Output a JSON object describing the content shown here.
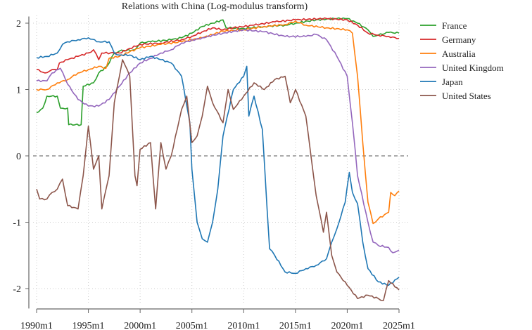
{
  "chart_data": {
    "type": "line",
    "title": "Relations with China (Log-modulus transform)",
    "xlabel": "",
    "ylabel": "",
    "xlim": [
      1990,
      2025
    ],
    "ylim": [
      -2.3,
      2.1
    ],
    "x_ticks": [
      1990,
      1995,
      2000,
      2005,
      2010,
      2015,
      2020,
      2025
    ],
    "x_tick_labels": [
      "1990m1",
      "1995m1",
      "2000m1",
      "2005m1",
      "2010m1",
      "2015m1",
      "2020m1",
      "2025m1"
    ],
    "y_ticks": [
      -2,
      -1,
      0,
      1,
      2
    ],
    "y_tick_labels": [
      "-2",
      "-1",
      "0",
      "1",
      "2"
    ],
    "grid": true,
    "reference_line": 0,
    "legend_position": "right",
    "series": [
      {
        "name": "France",
        "color": "#2ca02c",
        "points": [
          [
            1990,
            0.65
          ],
          [
            1990.6,
            0.72
          ],
          [
            1991,
            0.9
          ],
          [
            1992,
            0.9
          ],
          [
            1992.3,
            0.72
          ],
          [
            1993,
            0.72
          ],
          [
            1993.1,
            0.47
          ],
          [
            1994.3,
            0.47
          ],
          [
            1994.5,
            1.05
          ],
          [
            1995.5,
            1.1
          ],
          [
            1996,
            1.25
          ],
          [
            1996.8,
            1.35
          ],
          [
            1997.5,
            1.55
          ],
          [
            1998,
            1.58
          ],
          [
            1999.5,
            1.6
          ],
          [
            2000,
            1.7
          ],
          [
            2001,
            1.72
          ],
          [
            2003,
            1.75
          ],
          [
            2004,
            1.78
          ],
          [
            2005,
            1.85
          ],
          [
            2006,
            1.95
          ],
          [
            2007,
            2.0
          ],
          [
            2008,
            2.05
          ],
          [
            2008.3,
            1.93
          ],
          [
            2010,
            1.92
          ],
          [
            2012,
            1.95
          ],
          [
            2014,
            1.97
          ],
          [
            2015,
            2.0
          ],
          [
            2017,
            2.05
          ],
          [
            2019,
            2.07
          ],
          [
            2020,
            2.07
          ],
          [
            2021,
            2.0
          ],
          [
            2022,
            1.9
          ],
          [
            2022.5,
            1.8
          ],
          [
            2023,
            1.82
          ],
          [
            2024,
            1.86
          ],
          [
            2025,
            1.85
          ]
        ]
      },
      {
        "name": "Germany",
        "color": "#d62728",
        "points": [
          [
            1990,
            1.3
          ],
          [
            1990.8,
            1.25
          ],
          [
            1991.5,
            1.3
          ],
          [
            1992,
            1.3
          ],
          [
            1992.2,
            1.4
          ],
          [
            1993,
            1.45
          ],
          [
            1994,
            1.5
          ],
          [
            1995,
            1.55
          ],
          [
            1995.5,
            1.6
          ],
          [
            1996,
            1.45
          ],
          [
            1996.3,
            1.55
          ],
          [
            1998,
            1.55
          ],
          [
            1999,
            1.62
          ],
          [
            2000,
            1.68
          ],
          [
            2002,
            1.7
          ],
          [
            2004,
            1.75
          ],
          [
            2005,
            1.8
          ],
          [
            2006,
            1.87
          ],
          [
            2007,
            1.93
          ],
          [
            2008,
            1.9
          ],
          [
            2009,
            1.93
          ],
          [
            2011,
            1.97
          ],
          [
            2013,
            2.02
          ],
          [
            2015,
            2.05
          ],
          [
            2018,
            2.07
          ],
          [
            2020,
            2.05
          ],
          [
            2021,
            1.97
          ],
          [
            2022,
            1.85
          ],
          [
            2023,
            1.82
          ],
          [
            2024,
            1.8
          ],
          [
            2025,
            1.77
          ]
        ]
      },
      {
        "name": "Australia",
        "color": "#ff7f0e",
        "points": [
          [
            1990,
            1.0
          ],
          [
            1991,
            1.0
          ],
          [
            1992,
            1.1
          ],
          [
            1993,
            1.15
          ],
          [
            1994,
            1.25
          ],
          [
            1995,
            1.3
          ],
          [
            1996,
            1.35
          ],
          [
            1996.7,
            1.32
          ],
          [
            1997,
            1.47
          ],
          [
            1998,
            1.5
          ],
          [
            1999,
            1.57
          ],
          [
            2000,
            1.63
          ],
          [
            2002,
            1.68
          ],
          [
            2004,
            1.72
          ],
          [
            2006,
            1.78
          ],
          [
            2008,
            1.88
          ],
          [
            2010,
            1.9
          ],
          [
            2012,
            1.95
          ],
          [
            2014,
            1.98
          ],
          [
            2015,
            2.03
          ],
          [
            2016,
            1.97
          ],
          [
            2018,
            1.93
          ],
          [
            2020,
            1.9
          ],
          [
            2020.5,
            1.85
          ],
          [
            2021,
            1.2
          ],
          [
            2021.5,
            0.2
          ],
          [
            2022,
            -0.7
          ],
          [
            2022.5,
            -1.02
          ],
          [
            2023,
            -0.95
          ],
          [
            2024,
            -0.85
          ],
          [
            2024.2,
            -0.55
          ],
          [
            2024.6,
            -0.6
          ],
          [
            2025,
            -0.53
          ]
        ]
      },
      {
        "name": "United Kingdom",
        "color": "#9467bd",
        "points": [
          [
            1990,
            1.13
          ],
          [
            1991,
            1.13
          ],
          [
            1991.5,
            1.25
          ],
          [
            1992.3,
            1.32
          ],
          [
            1993,
            1.08
          ],
          [
            1994,
            0.85
          ],
          [
            1995,
            0.75
          ],
          [
            1996,
            0.75
          ],
          [
            1997,
            0.85
          ],
          [
            1998,
            1.05
          ],
          [
            1999,
            1.25
          ],
          [
            2000,
            1.4
          ],
          [
            2001,
            1.47
          ],
          [
            2002,
            1.55
          ],
          [
            2003,
            1.6
          ],
          [
            2004,
            1.7
          ],
          [
            2006,
            1.78
          ],
          [
            2008,
            1.85
          ],
          [
            2010,
            1.9
          ],
          [
            2012,
            1.87
          ],
          [
            2014,
            1.8
          ],
          [
            2016,
            1.8
          ],
          [
            2017,
            1.83
          ],
          [
            2018,
            1.75
          ],
          [
            2019,
            1.5
          ],
          [
            2020,
            1.2
          ],
          [
            2020.5,
            0.5
          ],
          [
            2021,
            -0.3
          ],
          [
            2022,
            -1.0
          ],
          [
            2022.5,
            -1.3
          ],
          [
            2023,
            -1.35
          ],
          [
            2024,
            -1.38
          ],
          [
            2024.4,
            -1.46
          ],
          [
            2025,
            -1.42
          ]
        ]
      },
      {
        "name": "Japan",
        "color": "#1f77b4",
        "points": [
          [
            1990,
            1.48
          ],
          [
            1991,
            1.5
          ],
          [
            1992,
            1.55
          ],
          [
            1992.5,
            1.68
          ],
          [
            1993,
            1.72
          ],
          [
            1994,
            1.75
          ],
          [
            1995,
            1.78
          ],
          [
            1996,
            1.72
          ],
          [
            1997,
            1.72
          ],
          [
            1997.5,
            1.55
          ],
          [
            1998,
            1.52
          ],
          [
            1999,
            1.52
          ],
          [
            2000,
            1.45
          ],
          [
            2001,
            1.5
          ],
          [
            2002,
            1.45
          ],
          [
            2003,
            1.4
          ],
          [
            2004,
            1.2
          ],
          [
            2004.8,
            0.5
          ],
          [
            2005,
            -0.2
          ],
          [
            2005.5,
            -1.0
          ],
          [
            2006,
            -1.25
          ],
          [
            2006.5,
            -1.3
          ],
          [
            2007,
            -1.0
          ],
          [
            2007.5,
            -0.5
          ],
          [
            2008,
            0.3
          ],
          [
            2009,
            1.0
          ],
          [
            2010,
            1.2
          ],
          [
            2010.3,
            1.35
          ],
          [
            2010.5,
            0.6
          ],
          [
            2011,
            0.9
          ],
          [
            2011.8,
            0.4
          ],
          [
            2012.5,
            -1.4
          ],
          [
            2013,
            -1.5
          ],
          [
            2014,
            -1.75
          ],
          [
            2015,
            -1.77
          ],
          [
            2016,
            -1.7
          ],
          [
            2017,
            -1.65
          ],
          [
            2018,
            -1.55
          ],
          [
            2018.5,
            -1.3
          ],
          [
            2019,
            -1.1
          ],
          [
            2019.8,
            -0.7
          ],
          [
            2020.2,
            -0.25
          ],
          [
            2020.5,
            -0.55
          ],
          [
            2021,
            -0.72
          ],
          [
            2021.5,
            -1.3
          ],
          [
            2022,
            -1.7
          ],
          [
            2023,
            -1.9
          ],
          [
            2024,
            -1.95
          ],
          [
            2025,
            -1.83
          ]
        ]
      },
      {
        "name": "United States",
        "color": "#8c564b",
        "points": [
          [
            1990,
            -0.5
          ],
          [
            1990.3,
            -0.65
          ],
          [
            1991,
            -0.65
          ],
          [
            1991.5,
            -0.55
          ],
          [
            1992,
            -0.5
          ],
          [
            1992.5,
            -0.35
          ],
          [
            1993,
            -0.75
          ],
          [
            1994,
            -0.8
          ],
          [
            1994.5,
            -0.3
          ],
          [
            1995,
            0.45
          ],
          [
            1995.5,
            -0.2
          ],
          [
            1996,
            0.0
          ],
          [
            1996.3,
            -0.8
          ],
          [
            1997,
            -0.3
          ],
          [
            1997.5,
            0.8
          ],
          [
            1998,
            1.2
          ],
          [
            1998.3,
            1.45
          ],
          [
            1999,
            1.2
          ],
          [
            1999.5,
            -0.3
          ],
          [
            1999.7,
            -0.45
          ],
          [
            2000,
            0.1
          ],
          [
            2001,
            0.2
          ],
          [
            2001.5,
            -0.8
          ],
          [
            2002,
            0.2
          ],
          [
            2002.5,
            -0.2
          ],
          [
            2003,
            0.0
          ],
          [
            2004,
            0.7
          ],
          [
            2004.5,
            0.9
          ],
          [
            2005,
            0.2
          ],
          [
            2005.5,
            0.3
          ],
          [
            2006,
            0.6
          ],
          [
            2006.5,
            1.05
          ],
          [
            2007,
            0.8
          ],
          [
            2008,
            0.5
          ],
          [
            2008.5,
            1.0
          ],
          [
            2009,
            0.7
          ],
          [
            2010,
            0.9
          ],
          [
            2011,
            1.1
          ],
          [
            2012,
            1.0
          ],
          [
            2013,
            1.15
          ],
          [
            2014,
            1.2
          ],
          [
            2014.5,
            0.8
          ],
          [
            2015,
            1.0
          ],
          [
            2016,
            0.6
          ],
          [
            2016.5,
            0.0
          ],
          [
            2017,
            -0.6
          ],
          [
            2017.7,
            -1.15
          ],
          [
            2018,
            -0.85
          ],
          [
            2018.5,
            -1.5
          ],
          [
            2019,
            -1.75
          ],
          [
            2020,
            -1.95
          ],
          [
            2021,
            -2.15
          ],
          [
            2022,
            -2.1
          ],
          [
            2023,
            -2.15
          ],
          [
            2023.5,
            -2.18
          ],
          [
            2024,
            -1.88
          ],
          [
            2025,
            -2.02
          ]
        ]
      }
    ]
  }
}
